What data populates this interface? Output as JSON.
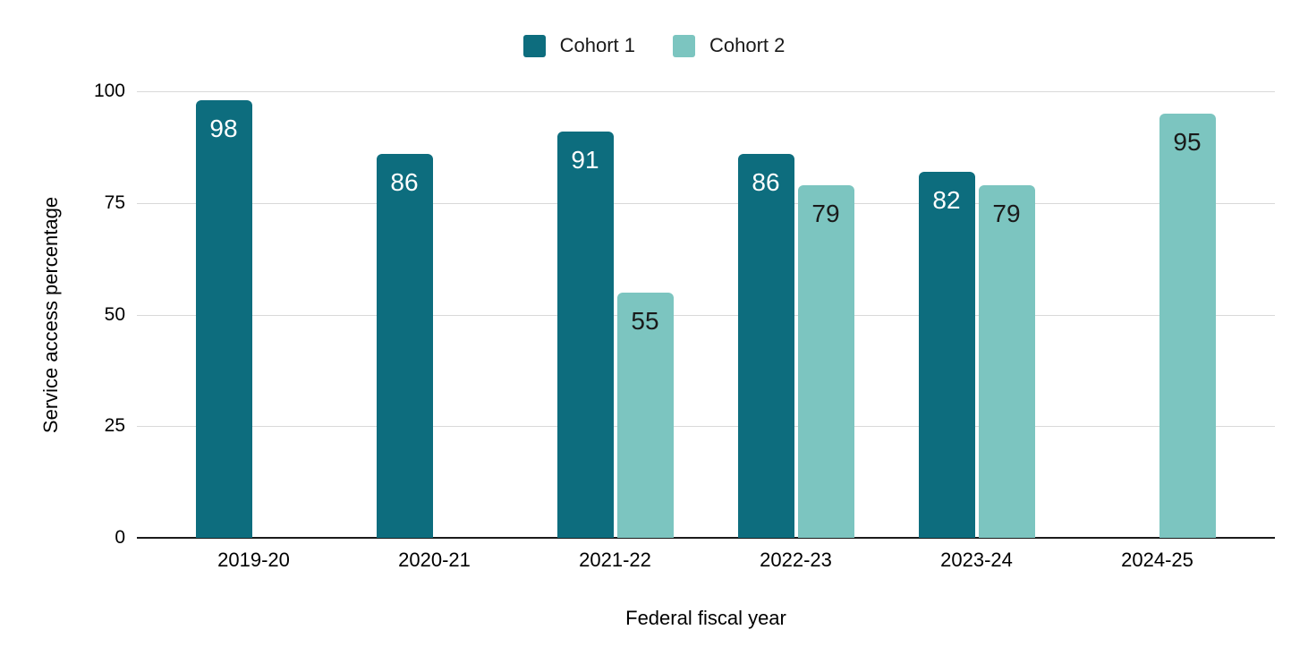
{
  "chart_data": {
    "type": "bar",
    "title": "",
    "xlabel": "Federal fiscal year",
    "ylabel": "Service access percentage",
    "categories": [
      "2019-20",
      "2020-21",
      "2021-22",
      "2022-23",
      "2023-24",
      "2024-25"
    ],
    "series": [
      {
        "name": "Cohort 1",
        "color": "#0d6d7e",
        "label_color": "#ffffff",
        "values": [
          98,
          86,
          91,
          86,
          82,
          null
        ]
      },
      {
        "name": "Cohort 2",
        "color": "#7cc5c0",
        "label_color": "#1a1a1a",
        "values": [
          null,
          null,
          55,
          79,
          79,
          95
        ]
      }
    ],
    "ylim": [
      0,
      100
    ],
    "yticks": [
      0,
      25,
      50,
      75,
      100
    ],
    "ytick_labels": [
      "0",
      "25",
      "50",
      "75",
      "100"
    ],
    "grid": true,
    "gridline_color": "#d9d9d9",
    "axis_line_color": "#1b1b1b",
    "legend_position": "top",
    "value_labels_shown": true
  }
}
